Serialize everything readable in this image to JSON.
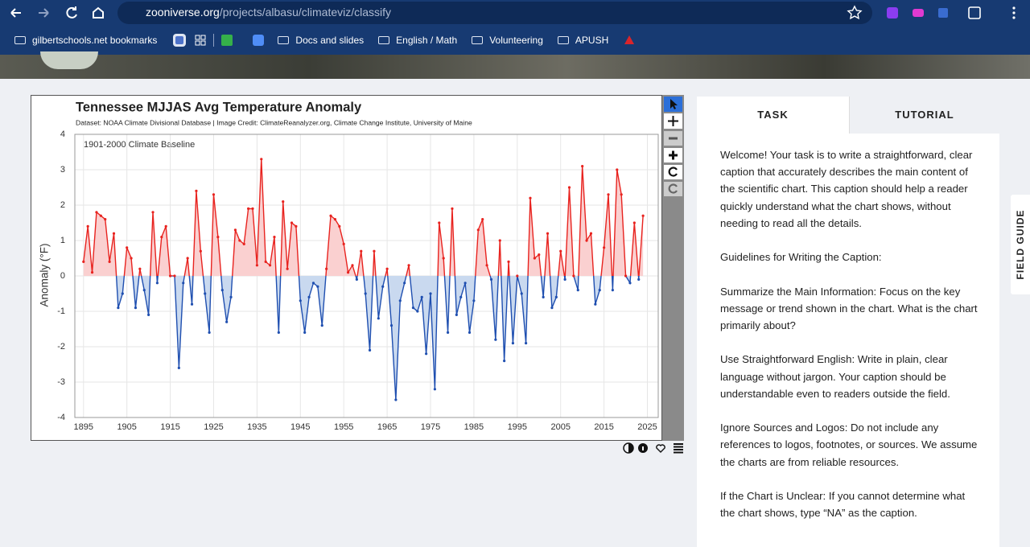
{
  "browser": {
    "url_host": "zooniverse.org",
    "url_path": "/projects/albasu/climateviz/classify",
    "bookmarks": [
      "gilbertschools.net bookmarks",
      "Docs and slides",
      "English / Math",
      "Volunteering",
      "APUSH"
    ]
  },
  "chart_data": {
    "type": "line",
    "title": "Tennessee MJJAS Avg Temperature Anomaly",
    "subtitle": "Dataset: NOAA Climate Divisional Database | Image Credit: ClimateReanalyzer.org, Climate Change Institute, University of Maine",
    "annotation": "1901-2000 Climate Baseline",
    "y_label": "Anomaly (°F)",
    "above_color": "#e8231f",
    "below_color": "#1f4fb0",
    "above_fill": "#fad0d0",
    "below_fill": "#c9d9ef",
    "grid": true,
    "xlim": [
      1893,
      2027.5
    ],
    "xticks": [
      1895,
      1905,
      1915,
      1925,
      1935,
      1945,
      1955,
      1965,
      1975,
      1985,
      1995,
      2005,
      2015,
      2025
    ],
    "ylim": [
      -4,
      4
    ],
    "yticks": [
      -4,
      -3,
      -2,
      -1,
      0,
      1,
      2,
      3,
      4
    ],
    "x": [
      1895,
      1896,
      1897,
      1898,
      1899,
      1900,
      1901,
      1902,
      1903,
      1904,
      1905,
      1906,
      1907,
      1908,
      1909,
      1910,
      1911,
      1912,
      1913,
      1914,
      1915,
      1916,
      1917,
      1918,
      1919,
      1920,
      1921,
      1922,
      1923,
      1924,
      1925,
      1926,
      1927,
      1928,
      1929,
      1930,
      1931,
      1932,
      1933,
      1934,
      1935,
      1936,
      1937,
      1938,
      1939,
      1940,
      1941,
      1942,
      1943,
      1944,
      1945,
      1946,
      1947,
      1948,
      1949,
      1950,
      1951,
      1952,
      1953,
      1954,
      1955,
      1956,
      1957,
      1958,
      1959,
      1960,
      1961,
      1962,
      1963,
      1964,
      1965,
      1966,
      1967,
      1968,
      1969,
      1970,
      1971,
      1972,
      1973,
      1974,
      1975,
      1976,
      1977,
      1978,
      1979,
      1980,
      1981,
      1982,
      1983,
      1984,
      1985,
      1986,
      1987,
      1988,
      1989,
      1990,
      1991,
      1992,
      1993,
      1994,
      1995,
      1996,
      1997,
      1998,
      1999,
      2000,
      2001,
      2002,
      2003,
      2004,
      2005,
      2006,
      2007,
      2008,
      2009,
      2010,
      2011,
      2012,
      2013,
      2014,
      2015,
      2016,
      2017,
      2018,
      2019,
      2020,
      2021,
      2022,
      2023,
      2024
    ],
    "values": [
      0.4,
      1.4,
      0.1,
      1.8,
      1.7,
      1.6,
      0.4,
      1.2,
      -0.9,
      -0.5,
      0.8,
      0.5,
      -0.9,
      0.2,
      -0.4,
      -1.1,
      1.8,
      -0.2,
      1.1,
      1.4,
      0.0,
      0.0,
      -2.6,
      -0.2,
      0.5,
      -0.8,
      2.4,
      0.7,
      -0.5,
      -1.6,
      2.3,
      1.1,
      -0.4,
      -1.3,
      -0.6,
      1.3,
      1.0,
      0.9,
      1.9,
      1.9,
      0.3,
      3.3,
      0.4,
      0.3,
      1.1,
      -1.6,
      2.1,
      0.2,
      1.5,
      1.4,
      -0.7,
      -1.6,
      -0.6,
      -0.2,
      -0.3,
      -1.4,
      0.2,
      1.7,
      1.6,
      1.4,
      0.9,
      0.1,
      0.3,
      -0.1,
      0.7,
      -0.5,
      -2.1,
      0.7,
      -1.2,
      -0.3,
      0.2,
      -1.4,
      -3.5,
      -0.7,
      -0.2,
      0.3,
      -0.9,
      -1.0,
      -0.6,
      -2.2,
      -0.5,
      -3.2,
      1.5,
      0.5,
      -1.6,
      1.9,
      -1.1,
      -0.6,
      -0.2,
      -1.6,
      -0.7,
      1.3,
      1.6,
      0.3,
      -0.1,
      -1.8,
      1.0,
      -2.4,
      0.4,
      -1.9,
      0.0,
      -0.5,
      -1.9,
      2.2,
      0.5,
      0.6,
      -0.6,
      1.2,
      -0.9,
      -0.6,
      0.7,
      -0.1,
      2.5,
      0.0,
      -0.4,
      3.1,
      1.0,
      1.2,
      -0.8,
      -0.4,
      0.8,
      2.3,
      -0.4,
      3.0,
      2.3,
      0.0,
      -0.2,
      1.5,
      -0.1,
      1.7
    ]
  },
  "panel": {
    "tabs": [
      "TASK",
      "TUTORIAL"
    ],
    "paragraphs": [
      "Welcome! Your task is to write a straightforward, clear caption that accurately describes the main content of the scientific chart. This caption should help a reader quickly understand what the chart shows, without needing to read all the details.",
      "Guidelines for Writing the Caption:",
      "Summarize the Main Information: Focus on the key message or trend shown in the chart. What is the chart primarily about?",
      "Use Straightforward English: Write in plain, clear language without jargon. Your caption should be understandable even to readers outside the field.",
      "Ignore Sources and Logos: Do not include any references to logos, footnotes, or sources. We assume the charts are from reliable resources.",
      "If the Chart is Unclear: If you cannot determine what the chart shows, type “NA” as the caption."
    ],
    "field_guide": "FIELD GUIDE"
  }
}
